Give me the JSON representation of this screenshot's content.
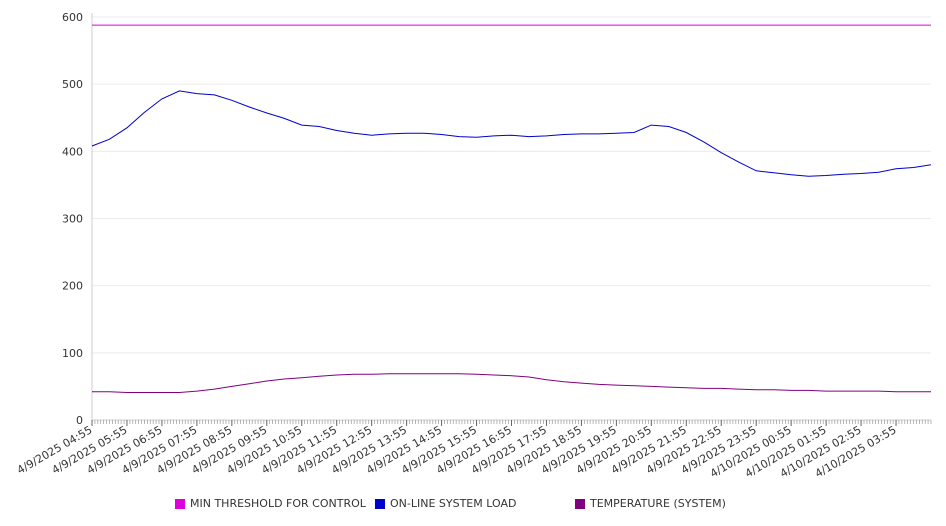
{
  "chart_data": {
    "type": "line",
    "title": "",
    "xlabel": "",
    "ylabel": "",
    "ylim": [
      0,
      600
    ],
    "y_ticks": [
      0,
      100,
      200,
      300,
      400,
      500,
      600
    ],
    "x_tick_labels": [
      "4/9/2025 04:55",
      "4/9/2025 05:55",
      "4/9/2025 06:55",
      "4/9/2025 07:55",
      "4/9/2025 08:55",
      "4/9/2025 09:55",
      "4/9/2025 10:55",
      "4/9/2025 11:55",
      "4/9/2025 12:55",
      "4/9/2025 13:55",
      "4/9/2025 14:55",
      "4/9/2025 15:55",
      "4/9/2025 16:55",
      "4/9/2025 17:55",
      "4/9/2025 18:55",
      "4/9/2025 19:55",
      "4/9/2025 20:55",
      "4/9/2025 21:55",
      "4/9/2025 22:55",
      "4/9/2025 23:55",
      "4/10/2025 00:55",
      "4/10/2025 01:55",
      "4/10/2025 02:55",
      "4/10/2025 03:55"
    ],
    "x_hours": [
      0,
      0.5,
      1,
      1.5,
      2,
      2.5,
      3,
      3.5,
      4,
      4.5,
      5,
      5.5,
      6,
      6.5,
      7,
      7.5,
      8,
      8.5,
      9,
      9.5,
      10,
      10.5,
      11,
      11.5,
      12,
      12.5,
      13,
      13.5,
      14,
      14.5,
      15,
      15.5,
      16,
      16.5,
      17,
      17.5,
      18,
      18.5,
      19,
      19.5,
      20,
      20.5,
      21,
      21.5,
      22,
      22.5,
      23,
      23.5,
      24
    ],
    "grid": true,
    "legend_position": "bottom",
    "series": [
      {
        "name": "MIN THRESHOLD FOR CONTROL",
        "color": "#dd00dd",
        "values": [
          588,
          588,
          588,
          588,
          588,
          588,
          588,
          588,
          588,
          588,
          588,
          588,
          588,
          588,
          588,
          588,
          588,
          588,
          588,
          588,
          588,
          588,
          588,
          588,
          588,
          588,
          588,
          588,
          588,
          588,
          588,
          588,
          588,
          588,
          588,
          588,
          588,
          588,
          588,
          588,
          588,
          588,
          588,
          588,
          588,
          588,
          588,
          588,
          588
        ]
      },
      {
        "name": "ON-LINE SYSTEM LOAD",
        "color": "#0000cc",
        "values": [
          408,
          418,
          435,
          458,
          478,
          490,
          486,
          484,
          476,
          466,
          457,
          449,
          439,
          437,
          431,
          427,
          424,
          426,
          427,
          427,
          425,
          422,
          421,
          423,
          424,
          422,
          423,
          425,
          426,
          426,
          427,
          428,
          439,
          437,
          428,
          414,
          398,
          384,
          371,
          368,
          365,
          363,
          364,
          366,
          367,
          369,
          374,
          376,
          380
        ]
      },
      {
        "name": "TEMPERATURE (SYSTEM)",
        "color": "#800080",
        "values": [
          42,
          42,
          41,
          41,
          41,
          41,
          43,
          46,
          50,
          54,
          58,
          61,
          63,
          65,
          67,
          68,
          68,
          69,
          69,
          69,
          69,
          69,
          68,
          67,
          66,
          64,
          60,
          57,
          55,
          53,
          52,
          51,
          50,
          49,
          48,
          47,
          47,
          46,
          45,
          45,
          44,
          44,
          43,
          43,
          43,
          43,
          42,
          42,
          42
        ]
      }
    ]
  }
}
